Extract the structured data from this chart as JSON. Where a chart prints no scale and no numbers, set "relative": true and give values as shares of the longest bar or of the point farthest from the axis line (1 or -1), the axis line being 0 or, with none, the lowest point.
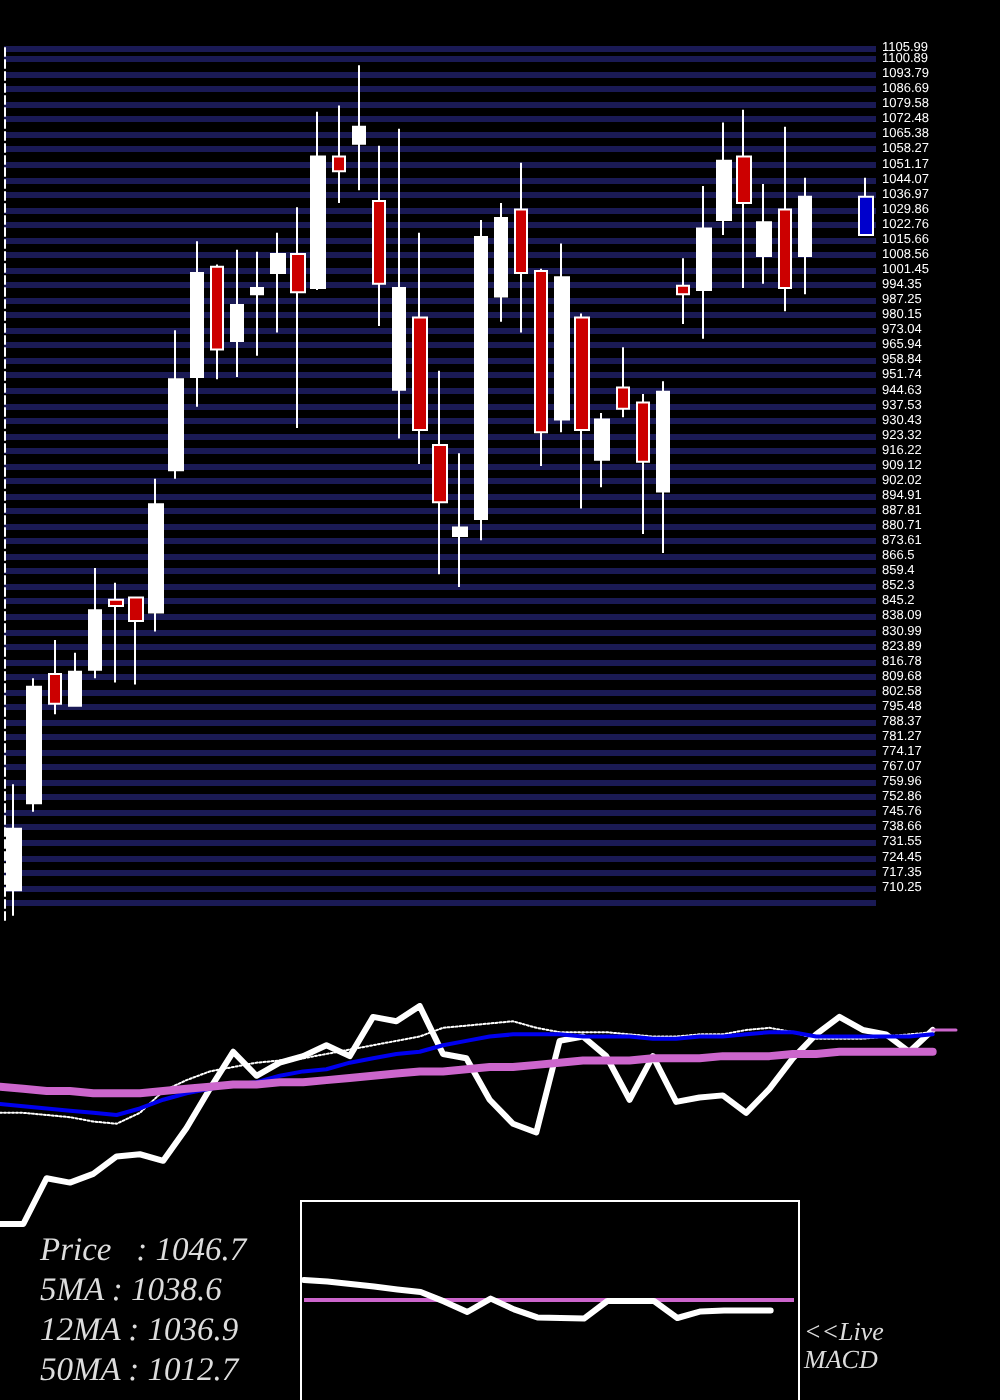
{
  "chart_data": [
    {
      "type": "candlestick",
      "categories": [
        null,
        null,
        null,
        null,
        null,
        null,
        null,
        null,
        null,
        null,
        null,
        null,
        null,
        null,
        null,
        null,
        null,
        null,
        null,
        null,
        null,
        null,
        null,
        null,
        null,
        null,
        null,
        null,
        null,
        null,
        null,
        null,
        null,
        null,
        null,
        null,
        null,
        null,
        null,
        null,
        null,
        null,
        null
      ],
      "ohlc": [
        [
          709,
          759,
          697,
          738
        ],
        [
          750,
          809,
          746,
          805
        ],
        [
          811,
          827,
          792,
          797
        ],
        [
          796,
          821,
          796,
          812
        ],
        [
          813,
          861,
          809,
          841
        ],
        [
          846,
          854,
          807,
          843
        ],
        [
          847,
          847,
          806,
          836
        ],
        [
          840,
          903,
          831,
          891
        ],
        [
          907,
          973,
          903,
          950
        ],
        [
          951,
          1015,
          937,
          1000
        ],
        [
          1003,
          1004,
          950,
          964
        ],
        [
          968,
          1011,
          951,
          985
        ],
        [
          990,
          1010,
          961,
          993
        ],
        [
          1000,
          1019,
          972,
          1009
        ],
        [
          1009,
          1031,
          927,
          991
        ],
        [
          993,
          1076,
          992,
          1055
        ],
        [
          1055,
          1079,
          1033,
          1048
        ],
        [
          1061,
          1098,
          1039,
          1069
        ],
        [
          1034,
          1060,
          975,
          995
        ],
        [
          945,
          1068,
          922,
          993
        ],
        [
          979,
          1019,
          910,
          926
        ],
        [
          919,
          954,
          858,
          892
        ],
        [
          876,
          915,
          852,
          880
        ],
        [
          884,
          1025,
          874,
          1017
        ],
        [
          989,
          1033,
          977,
          1026
        ],
        [
          1030,
          1052,
          972,
          1000
        ],
        [
          1001,
          1002,
          909,
          925
        ],
        [
          931,
          1014,
          925,
          998
        ],
        [
          979,
          981,
          889,
          926
        ],
        [
          912,
          934,
          899,
          931
        ],
        [
          946,
          965,
          932,
          936
        ],
        [
          939,
          943,
          877,
          911
        ],
        [
          897,
          949,
          868,
          944
        ],
        [
          994,
          1007,
          976,
          990
        ],
        [
          992,
          1041,
          969,
          1021
        ],
        [
          1025,
          1071,
          1018,
          1053
        ],
        [
          1055,
          1077,
          993,
          1033
        ],
        [
          1008,
          1042,
          995,
          1024
        ],
        [
          1030,
          1069,
          982,
          993
        ],
        [
          1008,
          1045,
          990,
          1036
        ],
        null,
        null,
        [
          1018,
          1045,
          1018,
          1036
        ]
      ],
      "colors": [
        "#ffffff",
        "#ffffff",
        "#cc0000",
        "#ffffff",
        "#ffffff",
        "#cc0000",
        "#cc0000",
        "#ffffff",
        "#ffffff",
        "#ffffff",
        "#cc0000",
        "#ffffff",
        "#ffffff",
        "#ffffff",
        "#cc0000",
        "#ffffff",
        "#cc0000",
        "#ffffff",
        "#cc0000",
        "#ffffff",
        "#cc0000",
        "#cc0000",
        "#ffffff",
        "#ffffff",
        "#ffffff",
        "#cc0000",
        "#cc0000",
        "#ffffff",
        "#cc0000",
        "#ffffff",
        "#cc0000",
        "#cc0000",
        "#ffffff",
        "#cc0000",
        "#ffffff",
        "#ffffff",
        "#cc0000",
        "#ffffff",
        "#cc0000",
        "#ffffff",
        null,
        null,
        "#0000cc"
      ],
      "ylim": [
        695,
        1108
      ],
      "yticks": [
        1105.99,
        1100.89,
        1093.79,
        1086.69,
        1079.58,
        1072.48,
        1065.38,
        1058.27,
        1051.17,
        1044.07,
        1036.97,
        1029.86,
        1022.76,
        1015.66,
        1008.56,
        1001.45,
        994.35,
        987.25,
        980.15,
        973.04,
        965.94,
        958.84,
        951.74,
        944.63,
        937.53,
        930.43,
        923.32,
        916.22,
        909.12,
        902.02,
        894.91,
        887.81,
        880.71,
        873.61,
        866.5,
        859.4,
        852.3,
        845.2,
        838.09,
        830.99,
        823.89,
        816.78,
        809.68,
        802.58,
        795.48,
        788.37,
        781.27,
        774.17,
        767.07,
        759.96,
        752.86,
        745.76,
        738.66,
        731.55,
        724.45,
        717.35,
        710.25,
        {
          "value": 703.14,
          "label": null
        }
      ],
      "grid": "y",
      "tick_labels": "y"
    },
    {
      "type": "line",
      "relative": true,
      "marker": "none",
      "line_style": "solid",
      "tick_labels": false,
      "categories": [
        null,
        null,
        null,
        null,
        null,
        null,
        null,
        null,
        null,
        null,
        null,
        null,
        null,
        null,
        null,
        null,
        null,
        null,
        null,
        null,
        null,
        null,
        null,
        null,
        null,
        null,
        null,
        null,
        null,
        null,
        null,
        null,
        null,
        null,
        null,
        null,
        null,
        null,
        null,
        null,
        null,
        null
      ],
      "series": [
        {
          "color": "#ffffff",
          "values": [
            0,
            0,
            0.21,
            0.19,
            0.23,
            0.31,
            0.32,
            0.29,
            0.44,
            0.62,
            0.79,
            0.68,
            0.74,
            0.77,
            0.82,
            0.77,
            0.95,
            0.93,
            1,
            0.78,
            0.76,
            0.57,
            0.46,
            0.42,
            0.84,
            0.86,
            0.77,
            0.57,
            0.77,
            0.56,
            0.58,
            0.59,
            0.51,
            0.62,
            0.76,
            0.87,
            0.95,
            0.89,
            0.87,
            0.79,
            0.89,
            null
          ]
        },
        {
          "color": "#ffffff",
          "line_style": "dotted",
          "values": [
            0.51,
            0.51,
            0.5,
            0.49,
            0.47,
            0.46,
            0.51,
            0.61,
            0.66,
            0.7,
            0.72,
            0.74,
            0.75,
            0.76,
            0.78,
            0.8,
            0.82,
            0.84,
            0.86,
            0.9,
            0.91,
            0.92,
            0.93,
            0.9,
            0.88,
            0.88,
            0.88,
            0.87,
            0.86,
            0.86,
            0.87,
            0.87,
            0.89,
            0.9,
            0.88,
            0.85,
            0.85,
            0.85,
            0.86,
            0.87,
            0.88,
            null
          ]
        },
        {
          "color": "#0000ee",
          "values": [
            0.55,
            0.54,
            0.53,
            0.52,
            0.51,
            0.5,
            0.53,
            0.57,
            0.6,
            0.62,
            0.64,
            0.65,
            0.68,
            0.7,
            0.71,
            0.74,
            0.76,
            0.78,
            0.79,
            0.82,
            0.84,
            0.86,
            0.87,
            0.87,
            0.87,
            0.86,
            0.86,
            0.86,
            0.85,
            0.85,
            0.86,
            0.86,
            0.87,
            0.88,
            0.88,
            0.86,
            0.86,
            0.86,
            0.86,
            0.86,
            0.87,
            null
          ]
        },
        {
          "color": "#cc66cc",
          "values": [
            0.63,
            0.62,
            0.61,
            0.61,
            0.6,
            0.6,
            0.6,
            0.61,
            0.62,
            0.63,
            0.64,
            0.64,
            0.65,
            0.65,
            0.66,
            0.67,
            0.68,
            0.69,
            0.7,
            0.7,
            0.71,
            0.72,
            0.72,
            0.73,
            0.74,
            0.75,
            0.75,
            0.75,
            0.76,
            0.76,
            0.76,
            0.77,
            0.77,
            0.77,
            0.78,
            0.78,
            0.79,
            0.79,
            0.79,
            0.79,
            0.79,
            null
          ]
        },
        {
          "color": "#cc66cc",
          "values": [
            null,
            null,
            null,
            null,
            null,
            null,
            null,
            null,
            null,
            null,
            null,
            null,
            null,
            null,
            null,
            null,
            null,
            null,
            null,
            null,
            null,
            null,
            null,
            null,
            null,
            null,
            null,
            null,
            null,
            null,
            null,
            null,
            null,
            null,
            null,
            null,
            null,
            null,
            null,
            null,
            0.89,
            0.89
          ]
        }
      ],
      "annotations": [
        "Price   : 1046.7",
        "5MA : 1038.6",
        "12MA : 1036.9",
        "50MA : 1012.7"
      ]
    },
    {
      "type": "line",
      "relative": true,
      "marker": "none",
      "line_style": "solid",
      "tick_labels": false,
      "categories": [
        null,
        null,
        null,
        null,
        null,
        null,
        null,
        null,
        null,
        null,
        null,
        null,
        null,
        null,
        null,
        null,
        null,
        null,
        null,
        null,
        null,
        null
      ],
      "series": [
        {
          "color": "#ffffff",
          "values": [
            1,
            0.93,
            0.8,
            0.67,
            0.53,
            0.4,
            -0.07,
            -0.6,
            0.07,
            -0.47,
            -0.87,
            -0.9,
            -0.93,
            -0.05,
            -0.05,
            -0.05,
            -0.9,
            -0.57,
            -0.53,
            -0.53,
            -0.53,
            null
          ]
        }
      ],
      "ref_lines": [
        {
          "axis": "y",
          "value": 0,
          "color": "#cc66cc"
        }
      ],
      "annotations": [
        "<<Live MACD"
      ]
    }
  ]
}
